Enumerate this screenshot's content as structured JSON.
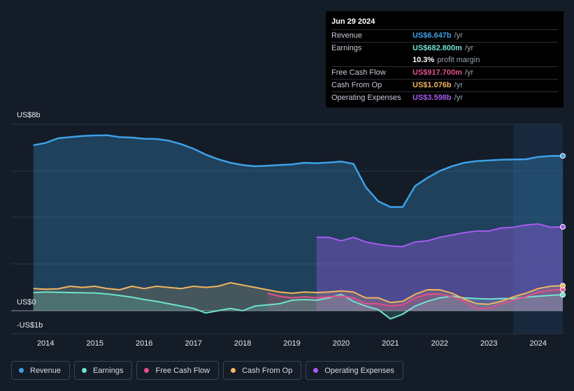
{
  "tooltip": {
    "date": "Jun 29 2024",
    "rows": [
      {
        "label": "Revenue",
        "value": "US$6.647b",
        "unit": "/yr",
        "color": "#3ea1e6"
      },
      {
        "label": "Earnings",
        "value": "US$682.800m",
        "unit": "/yr",
        "color": "#6fe3cf"
      },
      {
        "label": "",
        "value": "10.3%",
        "unit": "profit margin",
        "color": "#ffffff"
      },
      {
        "label": "Free Cash Flow",
        "value": "US$917.700m",
        "unit": "/yr",
        "color": "#e0508a"
      },
      {
        "label": "Cash From Op",
        "value": "US$1.076b",
        "unit": "/yr",
        "color": "#f2b560"
      },
      {
        "label": "Operating Expenses",
        "value": "US$3.598b",
        "unit": "/yr",
        "color": "#a65bf0"
      }
    ]
  },
  "chart_data": {
    "type": "area",
    "ylabel_top": "US$8b",
    "ylabel_zero": "US$0",
    "ylabel_bottom": "-US$1b",
    "ylim": [
      -1,
      8
    ],
    "xlim": [
      2013.3,
      2024.5
    ],
    "x_ticks": [
      "2014",
      "2015",
      "2016",
      "2017",
      "2018",
      "2019",
      "2020",
      "2021",
      "2022",
      "2023",
      "2024"
    ],
    "series": [
      {
        "name": "Revenue",
        "color": "#3ea1e6",
        "points": [
          [
            2013.75,
            7.1
          ],
          [
            2014.0,
            7.2
          ],
          [
            2014.25,
            7.4
          ],
          [
            2014.5,
            7.45
          ],
          [
            2014.75,
            7.5
          ],
          [
            2015.0,
            7.52
          ],
          [
            2015.25,
            7.53
          ],
          [
            2015.5,
            7.45
          ],
          [
            2015.75,
            7.43
          ],
          [
            2016.0,
            7.38
          ],
          [
            2016.25,
            7.37
          ],
          [
            2016.5,
            7.3
          ],
          [
            2016.75,
            7.15
          ],
          [
            2017.0,
            6.95
          ],
          [
            2017.25,
            6.7
          ],
          [
            2017.5,
            6.5
          ],
          [
            2017.75,
            6.35
          ],
          [
            2018.0,
            6.25
          ],
          [
            2018.25,
            6.2
          ],
          [
            2018.5,
            6.22
          ],
          [
            2018.75,
            6.25
          ],
          [
            2019.0,
            6.28
          ],
          [
            2019.25,
            6.35
          ],
          [
            2019.5,
            6.33
          ],
          [
            2019.75,
            6.36
          ],
          [
            2020.0,
            6.4
          ],
          [
            2020.25,
            6.3
          ],
          [
            2020.5,
            5.3
          ],
          [
            2020.75,
            4.7
          ],
          [
            2021.0,
            4.45
          ],
          [
            2021.25,
            4.45
          ],
          [
            2021.5,
            5.35
          ],
          [
            2021.75,
            5.7
          ],
          [
            2022.0,
            6.0
          ],
          [
            2022.25,
            6.2
          ],
          [
            2022.5,
            6.35
          ],
          [
            2022.75,
            6.42
          ],
          [
            2023.0,
            6.45
          ],
          [
            2023.25,
            6.48
          ],
          [
            2023.5,
            6.49
          ],
          [
            2023.75,
            6.5
          ],
          [
            2024.0,
            6.6
          ],
          [
            2024.25,
            6.64
          ],
          [
            2024.5,
            6.647
          ]
        ]
      },
      {
        "name": "Earnings",
        "color": "#6fe3cf",
        "points": [
          [
            2013.75,
            0.78
          ],
          [
            2014.0,
            0.8
          ],
          [
            2014.5,
            0.78
          ],
          [
            2015.0,
            0.76
          ],
          [
            2015.25,
            0.72
          ],
          [
            2015.5,
            0.65
          ],
          [
            2015.75,
            0.58
          ],
          [
            2016.0,
            0.48
          ],
          [
            2016.25,
            0.4
          ],
          [
            2016.5,
            0.3
          ],
          [
            2016.75,
            0.2
          ],
          [
            2017.0,
            0.1
          ],
          [
            2017.25,
            -0.1
          ],
          [
            2017.5,
            0.0
          ],
          [
            2017.75,
            0.1
          ],
          [
            2018.0,
            0.0
          ],
          [
            2018.25,
            0.2
          ],
          [
            2018.5,
            0.25
          ],
          [
            2018.75,
            0.3
          ],
          [
            2019.0,
            0.45
          ],
          [
            2019.25,
            0.48
          ],
          [
            2019.5,
            0.45
          ],
          [
            2019.75,
            0.55
          ],
          [
            2020.0,
            0.7
          ],
          [
            2020.25,
            0.4
          ],
          [
            2020.5,
            0.2
          ],
          [
            2020.75,
            0.05
          ],
          [
            2021.0,
            -0.35
          ],
          [
            2021.25,
            -0.15
          ],
          [
            2021.5,
            0.2
          ],
          [
            2021.75,
            0.4
          ],
          [
            2022.0,
            0.55
          ],
          [
            2022.25,
            0.62
          ],
          [
            2022.5,
            0.55
          ],
          [
            2022.75,
            0.52
          ],
          [
            2023.0,
            0.5
          ],
          [
            2023.25,
            0.52
          ],
          [
            2023.5,
            0.52
          ],
          [
            2023.75,
            0.58
          ],
          [
            2024.0,
            0.62
          ],
          [
            2024.25,
            0.66
          ],
          [
            2024.5,
            0.683
          ]
        ]
      },
      {
        "name": "Free Cash Flow",
        "color": "#e0508a",
        "points": [
          [
            2018.5,
            0.75
          ],
          [
            2018.75,
            0.62
          ],
          [
            2019.0,
            0.55
          ],
          [
            2019.25,
            0.6
          ],
          [
            2019.5,
            0.55
          ],
          [
            2019.75,
            0.6
          ],
          [
            2020.0,
            0.62
          ],
          [
            2020.25,
            0.55
          ],
          [
            2020.5,
            0.3
          ],
          [
            2020.75,
            0.3
          ],
          [
            2021.0,
            0.2
          ],
          [
            2021.25,
            0.25
          ],
          [
            2021.5,
            0.55
          ],
          [
            2021.75,
            0.7
          ],
          [
            2022.0,
            0.72
          ],
          [
            2022.25,
            0.6
          ],
          [
            2022.5,
            0.4
          ],
          [
            2022.75,
            0.1
          ],
          [
            2023.0,
            0.1
          ],
          [
            2023.25,
            0.3
          ],
          [
            2023.5,
            0.45
          ],
          [
            2023.75,
            0.6
          ],
          [
            2024.0,
            0.8
          ],
          [
            2024.25,
            0.88
          ],
          [
            2024.5,
            0.918
          ]
        ]
      },
      {
        "name": "Cash From Op",
        "color": "#f2b560",
        "points": [
          [
            2013.75,
            0.95
          ],
          [
            2014.0,
            0.92
          ],
          [
            2014.25,
            0.94
          ],
          [
            2014.5,
            1.05
          ],
          [
            2014.75,
            1.0
          ],
          [
            2015.0,
            1.05
          ],
          [
            2015.25,
            0.95
          ],
          [
            2015.5,
            0.9
          ],
          [
            2015.75,
            1.05
          ],
          [
            2016.0,
            0.95
          ],
          [
            2016.25,
            1.05
          ],
          [
            2016.5,
            1.0
          ],
          [
            2016.75,
            0.95
          ],
          [
            2017.0,
            1.05
          ],
          [
            2017.25,
            1.0
          ],
          [
            2017.5,
            1.05
          ],
          [
            2017.75,
            1.2
          ],
          [
            2018.0,
            1.1
          ],
          [
            2018.25,
            1.0
          ],
          [
            2018.5,
            0.9
          ],
          [
            2018.75,
            0.8
          ],
          [
            2019.0,
            0.75
          ],
          [
            2019.25,
            0.8
          ],
          [
            2019.5,
            0.78
          ],
          [
            2019.75,
            0.8
          ],
          [
            2020.0,
            0.85
          ],
          [
            2020.25,
            0.8
          ],
          [
            2020.5,
            0.55
          ],
          [
            2020.75,
            0.55
          ],
          [
            2021.0,
            0.35
          ],
          [
            2021.25,
            0.4
          ],
          [
            2021.5,
            0.7
          ],
          [
            2021.75,
            0.9
          ],
          [
            2022.0,
            0.9
          ],
          [
            2022.25,
            0.75
          ],
          [
            2022.5,
            0.5
          ],
          [
            2022.75,
            0.3
          ],
          [
            2023.0,
            0.28
          ],
          [
            2023.25,
            0.4
          ],
          [
            2023.5,
            0.6
          ],
          [
            2023.75,
            0.75
          ],
          [
            2024.0,
            0.95
          ],
          [
            2024.25,
            1.05
          ],
          [
            2024.5,
            1.076
          ]
        ]
      },
      {
        "name": "Operating Expenses",
        "color": "#a65bf0",
        "points": [
          [
            2019.5,
            3.15
          ],
          [
            2019.75,
            3.15
          ],
          [
            2020.0,
            3.0
          ],
          [
            2020.25,
            3.15
          ],
          [
            2020.5,
            2.95
          ],
          [
            2020.75,
            2.85
          ],
          [
            2021.0,
            2.78
          ],
          [
            2021.25,
            2.75
          ],
          [
            2021.5,
            2.95
          ],
          [
            2021.75,
            3.0
          ],
          [
            2022.0,
            3.15
          ],
          [
            2022.25,
            3.25
          ],
          [
            2022.5,
            3.35
          ],
          [
            2022.75,
            3.42
          ],
          [
            2023.0,
            3.42
          ],
          [
            2023.25,
            3.55
          ],
          [
            2023.5,
            3.58
          ],
          [
            2023.75,
            3.68
          ],
          [
            2024.0,
            3.72
          ],
          [
            2024.25,
            3.58
          ],
          [
            2024.5,
            3.598
          ]
        ]
      }
    ]
  },
  "legend": [
    {
      "label": "Revenue",
      "color": "#3ea1e6"
    },
    {
      "label": "Earnings",
      "color": "#6fe3cf"
    },
    {
      "label": "Free Cash Flow",
      "color": "#e0508a"
    },
    {
      "label": "Cash From Op",
      "color": "#f2b560"
    },
    {
      "label": "Operating Expenses",
      "color": "#a65bf0"
    }
  ]
}
